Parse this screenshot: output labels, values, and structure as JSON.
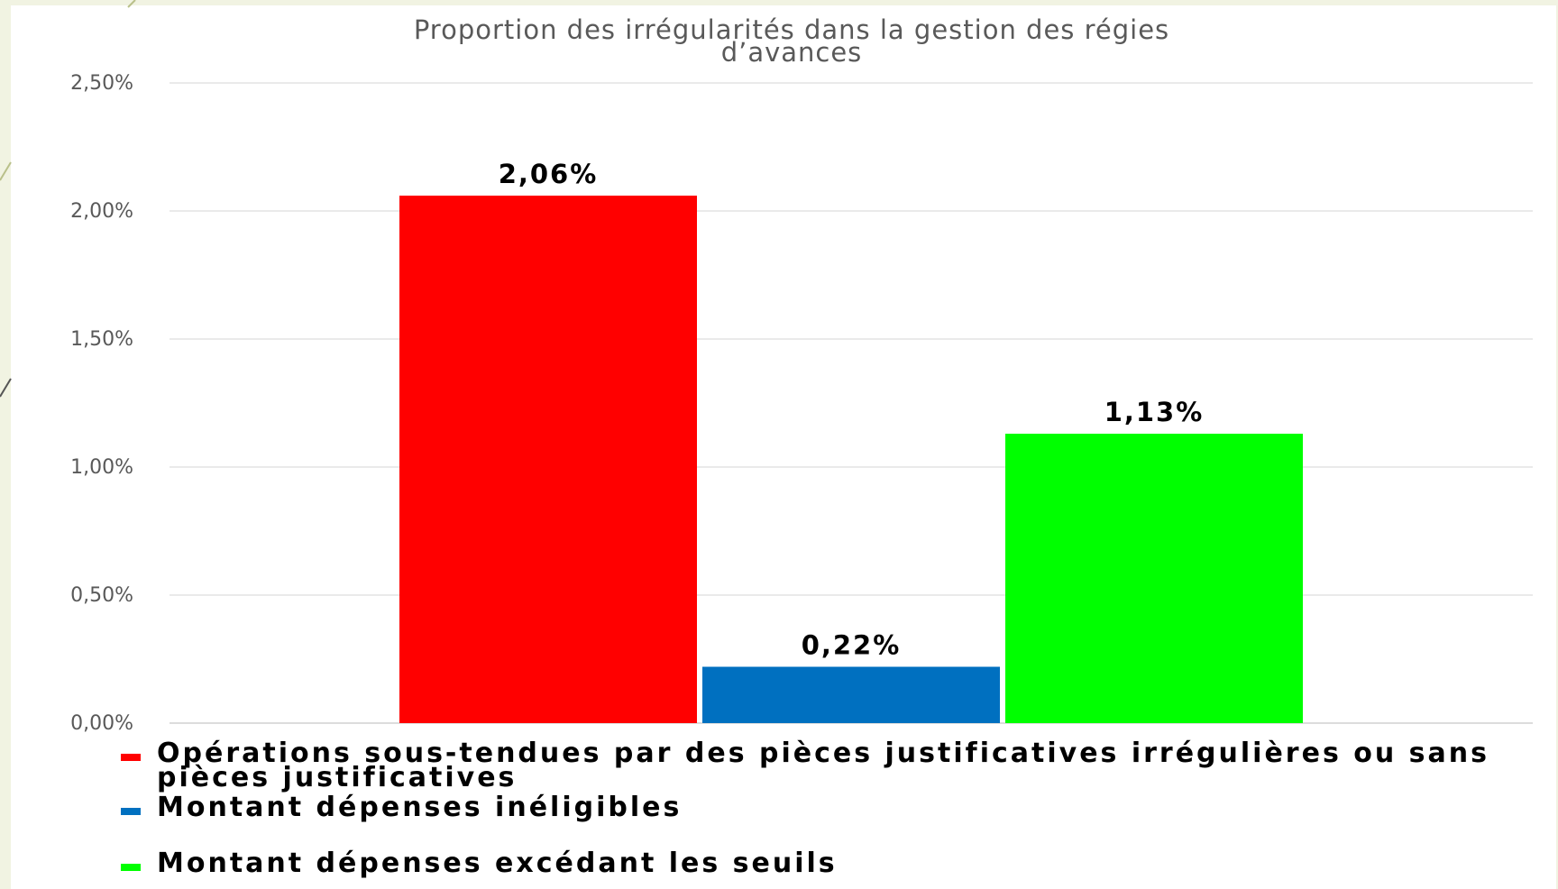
{
  "chart_data": {
    "type": "bar",
    "title": "Proportion des irrégularités dans la gestion des régies d’avances",
    "title_lines": [
      "Proportion des irrégularités dans la gestion des régies",
      "d’avances"
    ],
    "ylim": [
      0,
      2.5
    ],
    "yticks": [
      "0,00%",
      "0,50%",
      "1,00%",
      "1,50%",
      "2,00%",
      "2,50%"
    ],
    "grid": true,
    "legend_position": "bottom",
    "series": [
      {
        "name": "Opérations sous-tendues par des pièces justificatives irrégulières ou sans pièces justificatives",
        "value": 2.06,
        "label": "2,06%",
        "color": "#ff0000"
      },
      {
        "name": "Montant dépenses inéligibles",
        "value": 0.22,
        "label": "0,22%",
        "color": "#0070c0"
      },
      {
        "name": "Montant dépenses excédant les seuils",
        "value": 1.13,
        "label": "1,13%",
        "color": "#00ff00"
      }
    ]
  }
}
